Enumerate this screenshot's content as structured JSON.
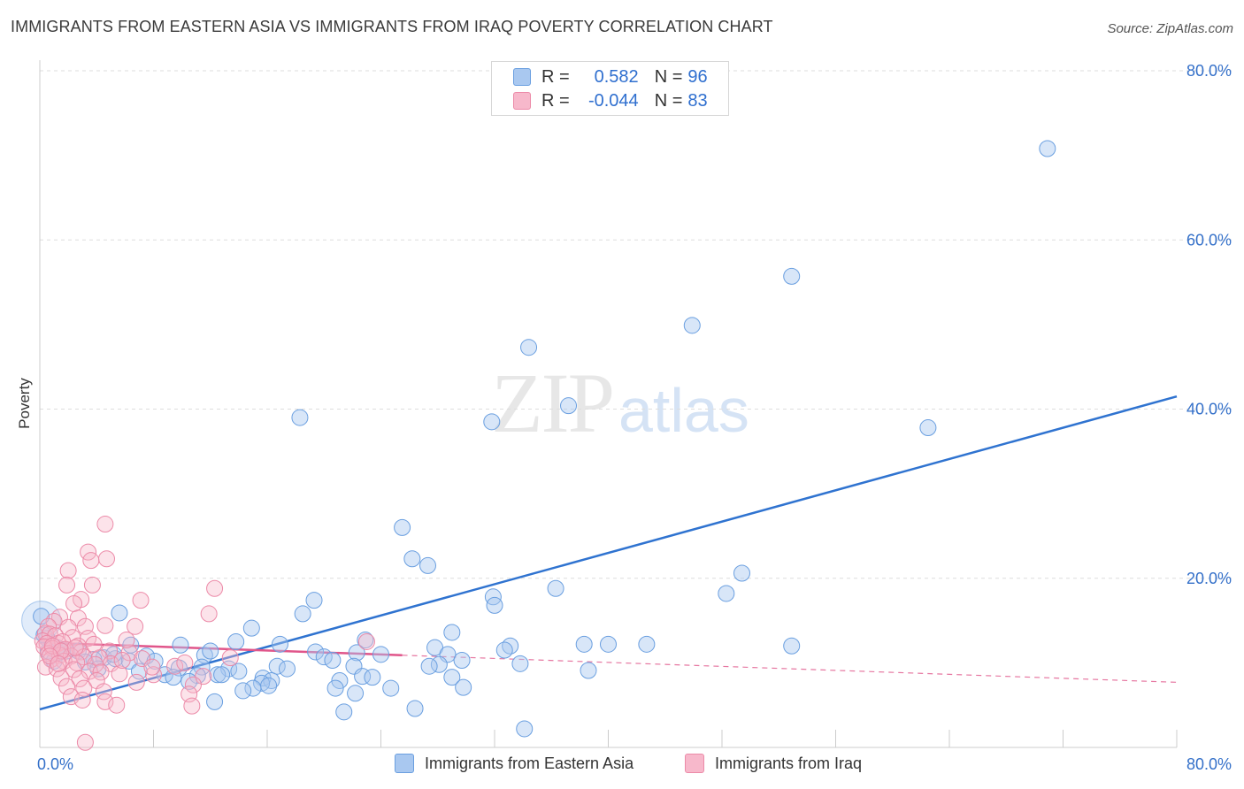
{
  "header": {
    "title": "IMMIGRANTS FROM EASTERN ASIA VS IMMIGRANTS FROM IRAQ POVERTY CORRELATION CHART",
    "source": "Source: ZipAtlas.com"
  },
  "watermark": {
    "zip": "ZIP",
    "atlas": "atlas"
  },
  "colors": {
    "blue_fill": "#a9c8f0",
    "blue_stroke": "#6a9fe0",
    "blue_line": "#2f73d0",
    "pink_fill": "#f7b8cb",
    "pink_stroke": "#ec8aa8",
    "pink_line": "#e0558a",
    "axis_text": "#3470c9",
    "grid": "#dddddd"
  },
  "stats_legend": [
    {
      "r_label": "R =",
      "r_value": "0.582",
      "n_label": "N =",
      "n_value": "96",
      "color": "#a9c8f0",
      "stroke": "#6a9fe0"
    },
    {
      "r_label": "R =",
      "r_value": "-0.044",
      "n_label": "N =",
      "n_value": "83",
      "color": "#f7b8cb",
      "stroke": "#ec8aa8"
    }
  ],
  "chart_data": {
    "type": "scatter",
    "title": "IMMIGRANTS FROM EASTERN ASIA VS IMMIGRANTS FROM IRAQ POVERTY CORRELATION CHART",
    "xlabel": "",
    "ylabel": "Poverty",
    "xlim": [
      0,
      80
    ],
    "ylim": [
      0,
      80
    ],
    "x_tick_labels": [
      "0.0%",
      "80.0%"
    ],
    "y_tick_labels": [
      "20.0%",
      "40.0%",
      "60.0%",
      "80.0%"
    ],
    "y_tick_values": [
      20,
      40,
      60,
      80
    ],
    "grid": true,
    "legend_position": "bottom",
    "series": [
      {
        "name": "Immigrants from Eastern Asia",
        "color": "#a9c8f0",
        "trend": {
          "x": [
            0,
            80
          ],
          "y": [
            4.5,
            41.5
          ]
        },
        "points": [
          [
            70.9,
            70.8
          ],
          [
            52.9,
            55.7
          ],
          [
            45.9,
            49.9
          ],
          [
            34.4,
            47.3
          ],
          [
            37.2,
            40.4
          ],
          [
            31.8,
            38.5
          ],
          [
            18.3,
            39.0
          ],
          [
            62.5,
            37.8
          ],
          [
            25.5,
            26.0
          ],
          [
            26.2,
            22.3
          ],
          [
            27.3,
            21.5
          ],
          [
            49.4,
            20.6
          ],
          [
            48.3,
            18.2
          ],
          [
            36.3,
            18.8
          ],
          [
            31.9,
            17.8
          ],
          [
            32.0,
            16.8
          ],
          [
            19.3,
            17.4
          ],
          [
            18.5,
            15.8
          ],
          [
            5.6,
            15.9
          ],
          [
            0.1,
            15.5
          ],
          [
            14.9,
            14.1
          ],
          [
            29.0,
            13.6
          ],
          [
            22.9,
            12.7
          ],
          [
            13.8,
            12.5
          ],
          [
            16.9,
            12.2
          ],
          [
            9.9,
            12.1
          ],
          [
            6.4,
            12.1
          ],
          [
            1.2,
            11.8
          ],
          [
            33.1,
            12.0
          ],
          [
            38.3,
            12.2
          ],
          [
            42.7,
            12.2
          ],
          [
            27.8,
            11.8
          ],
          [
            1.9,
            11.4
          ],
          [
            1.3,
            11.2
          ],
          [
            0.6,
            11.4
          ],
          [
            2.7,
            11.4
          ],
          [
            19.4,
            11.3
          ],
          [
            22.3,
            11.2
          ],
          [
            28.7,
            11.0
          ],
          [
            24.0,
            11.0
          ],
          [
            11.6,
            10.9
          ],
          [
            7.5,
            10.8
          ],
          [
            20.0,
            10.7
          ],
          [
            4.5,
            10.6
          ],
          [
            5.3,
            10.5
          ],
          [
            20.6,
            10.3
          ],
          [
            3.8,
            10.4
          ],
          [
            29.7,
            10.3
          ],
          [
            8.1,
            10.2
          ],
          [
            6.3,
            10.2
          ],
          [
            3.2,
            10.1
          ],
          [
            33.8,
            9.9
          ],
          [
            28.1,
            9.8
          ],
          [
            27.4,
            9.6
          ],
          [
            16.7,
            9.6
          ],
          [
            22.1,
            9.6
          ],
          [
            11.4,
            9.5
          ],
          [
            9.8,
            9.4
          ],
          [
            4.1,
            9.3
          ],
          [
            13.3,
            9.3
          ],
          [
            17.4,
            9.3
          ],
          [
            14.0,
            9.0
          ],
          [
            7.0,
            9.0
          ],
          [
            38.6,
            9.1
          ],
          [
            22.7,
            8.4
          ],
          [
            12.5,
            8.6
          ],
          [
            11.1,
            8.5
          ],
          [
            8.8,
            8.6
          ],
          [
            9.4,
            8.3
          ],
          [
            12.8,
            8.6
          ],
          [
            23.4,
            8.3
          ],
          [
            15.7,
            8.2
          ],
          [
            29.0,
            8.3
          ],
          [
            10.5,
            7.8
          ],
          [
            16.3,
            7.9
          ],
          [
            21.1,
            7.9
          ],
          [
            15.6,
            7.6
          ],
          [
            16.1,
            7.3
          ],
          [
            20.8,
            7.0
          ],
          [
            15.0,
            7.0
          ],
          [
            24.7,
            7.0
          ],
          [
            29.8,
            7.1
          ],
          [
            14.3,
            6.7
          ],
          [
            22.2,
            6.4
          ],
          [
            12.3,
            5.4
          ],
          [
            26.4,
            4.6
          ],
          [
            21.4,
            4.2
          ],
          [
            34.1,
            2.2
          ],
          [
            40.0,
            12.2
          ],
          [
            52.9,
            12.0
          ],
          [
            12.0,
            11.4
          ],
          [
            0.5,
            12.9
          ],
          [
            0.3,
            13.3
          ],
          [
            5.2,
            11.0
          ],
          [
            1.0,
            10.2
          ],
          [
            32.7,
            11.5
          ]
        ]
      },
      {
        "name": "Immigrants from Iraq",
        "color": "#f7b8cb",
        "trend": {
          "x": [
            0,
            80
          ],
          "y": [
            12.4,
            7.7
          ],
          "solid_until_x": 25.5
        },
        "points": [
          [
            4.6,
            26.4
          ],
          [
            4.7,
            22.3
          ],
          [
            3.4,
            23.1
          ],
          [
            3.6,
            22.1
          ],
          [
            2.0,
            20.9
          ],
          [
            1.9,
            19.2
          ],
          [
            3.7,
            19.2
          ],
          [
            12.3,
            18.8
          ],
          [
            2.9,
            17.5
          ],
          [
            2.4,
            17.0
          ],
          [
            7.1,
            17.4
          ],
          [
            11.9,
            15.8
          ],
          [
            1.4,
            15.4
          ],
          [
            2.7,
            15.3
          ],
          [
            1.0,
            14.9
          ],
          [
            0.6,
            14.3
          ],
          [
            2.0,
            14.2
          ],
          [
            3.2,
            14.3
          ],
          [
            4.6,
            14.4
          ],
          [
            6.7,
            14.3
          ],
          [
            0.4,
            13.5
          ],
          [
            0.7,
            13.4
          ],
          [
            1.1,
            13.2
          ],
          [
            2.3,
            13.0
          ],
          [
            3.4,
            12.9
          ],
          [
            0.2,
            12.6
          ],
          [
            0.5,
            12.3
          ],
          [
            1.3,
            12.3
          ],
          [
            1.6,
            12.5
          ],
          [
            2.7,
            12.0
          ],
          [
            0.3,
            11.9
          ],
          [
            0.9,
            11.7
          ],
          [
            1.8,
            11.6
          ],
          [
            2.9,
            11.3
          ],
          [
            4.9,
            11.4
          ],
          [
            6.3,
            11.2
          ],
          [
            0.6,
            11.1
          ],
          [
            1.4,
            10.9
          ],
          [
            2.2,
            10.8
          ],
          [
            3.1,
            10.7
          ],
          [
            4.2,
            10.6
          ],
          [
            7.2,
            10.5
          ],
          [
            13.4,
            10.6
          ],
          [
            23.0,
            12.5
          ],
          [
            0.8,
            10.4
          ],
          [
            1.7,
            10.2
          ],
          [
            2.6,
            10.0
          ],
          [
            3.9,
            9.8
          ],
          [
            5.0,
            9.9
          ],
          [
            9.5,
            9.6
          ],
          [
            10.2,
            10.0
          ],
          [
            0.4,
            9.5
          ],
          [
            1.2,
            9.3
          ],
          [
            2.4,
            9.2
          ],
          [
            3.5,
            9.0
          ],
          [
            4.3,
            8.9
          ],
          [
            5.6,
            8.7
          ],
          [
            8.0,
            8.6
          ],
          [
            11.5,
            8.4
          ],
          [
            1.5,
            8.2
          ],
          [
            2.8,
            8.1
          ],
          [
            4.0,
            7.9
          ],
          [
            6.8,
            7.7
          ],
          [
            10.8,
            7.4
          ],
          [
            1.9,
            7.2
          ],
          [
            3.1,
            7.0
          ],
          [
            4.5,
            6.6
          ],
          [
            10.5,
            6.3
          ],
          [
            2.2,
            6.0
          ],
          [
            3.0,
            5.6
          ],
          [
            4.6,
            5.4
          ],
          [
            5.4,
            5.0
          ],
          [
            10.7,
            4.9
          ],
          [
            3.2,
            0.6
          ],
          [
            0.9,
            12.0
          ],
          [
            1.5,
            11.4
          ],
          [
            2.5,
            11.8
          ],
          [
            0.7,
            10.8
          ],
          [
            1.3,
            9.9
          ],
          [
            3.8,
            12.2
          ],
          [
            5.8,
            10.3
          ],
          [
            7.9,
            9.5
          ],
          [
            6.1,
            12.7
          ]
        ]
      }
    ]
  }
}
